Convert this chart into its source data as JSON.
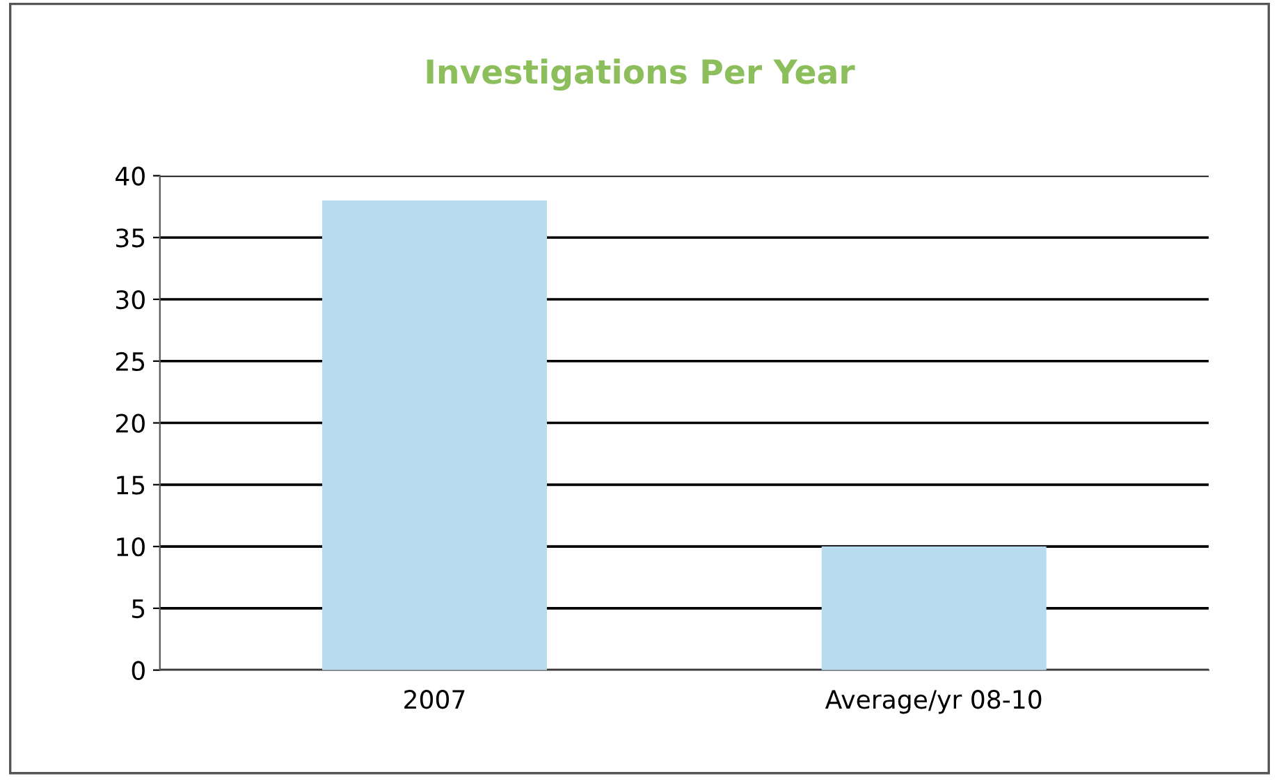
{
  "chart_data": {
    "type": "bar",
    "title": "Investigations Per Year",
    "categories": [
      "2007",
      "Average/yr 08-10"
    ],
    "values": [
      38,
      10
    ],
    "color": "#b9dbf0",
    "ylim": [
      0,
      40
    ],
    "yticks": [
      0,
      5,
      10,
      15,
      20,
      25,
      30,
      35,
      40
    ],
    "grid": "y"
  }
}
